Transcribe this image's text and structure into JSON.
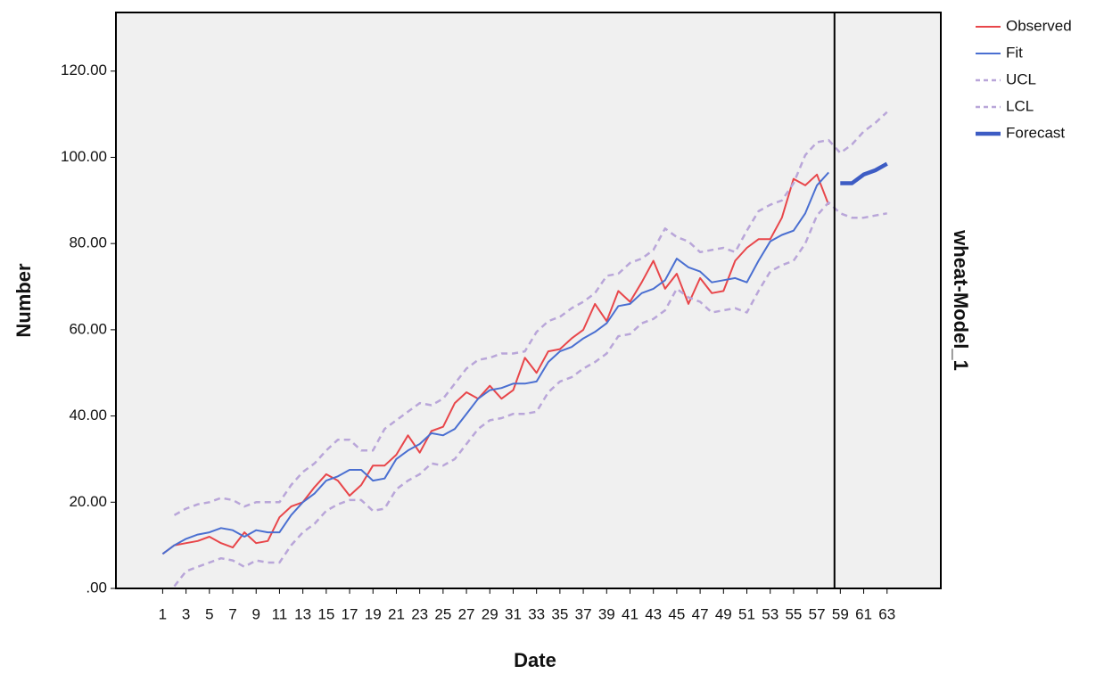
{
  "chart_data": {
    "type": "line",
    "x_label": "Date",
    "y_label": "Number",
    "panel_label": "wheat-Model_1",
    "x": [
      1,
      2,
      3,
      4,
      5,
      6,
      7,
      8,
      9,
      10,
      11,
      12,
      13,
      14,
      15,
      16,
      17,
      18,
      19,
      20,
      21,
      22,
      23,
      24,
      25,
      26,
      27,
      28,
      29,
      30,
      31,
      32,
      33,
      34,
      35,
      36,
      37,
      38,
      39,
      40,
      41,
      42,
      43,
      44,
      45,
      46,
      47,
      48,
      49,
      50,
      51,
      52,
      53,
      54,
      55,
      56,
      57,
      58,
      59,
      60,
      61,
      62,
      63
    ],
    "xlim": [
      -3,
      67.6
    ],
    "xticks": [
      1,
      3,
      5,
      7,
      9,
      11,
      13,
      15,
      17,
      19,
      21,
      23,
      25,
      27,
      29,
      31,
      33,
      35,
      37,
      39,
      41,
      43,
      45,
      47,
      49,
      51,
      53,
      55,
      57,
      59,
      61,
      63
    ],
    "ylim": [
      0,
      133.6
    ],
    "yticks": [
      {
        "value": 0,
        "label": ".00"
      },
      {
        "value": 20,
        "label": "20.00"
      },
      {
        "value": 40,
        "label": "40.00"
      },
      {
        "value": 60,
        "label": "60.00"
      },
      {
        "value": 80,
        "label": "80.00"
      },
      {
        "value": 100,
        "label": "100.00"
      },
      {
        "value": 120,
        "label": "120.00"
      }
    ],
    "series": [
      {
        "name": "Observed",
        "color": "#e8464a",
        "style": "solid",
        "values": [
          8,
          10,
          10.5,
          11,
          12,
          10.5,
          9.5,
          13,
          10.5,
          11,
          16.5,
          19,
          20,
          23.5,
          26.5,
          25,
          21.5,
          24,
          28.5,
          28.5,
          31,
          35.5,
          31.5,
          36.5,
          37.5,
          43,
          45.5,
          44,
          47,
          44,
          46,
          53.5,
          50,
          55,
          55.5,
          58,
          60,
          66,
          62,
          69,
          66.5,
          71,
          76,
          69.5,
          73,
          66,
          72,
          68.5,
          69,
          76,
          79,
          81,
          81,
          86,
          95,
          93.5,
          96,
          89,
          null,
          null,
          null,
          null,
          null
        ]
      },
      {
        "name": "Fit",
        "color": "#4a6fd1",
        "style": "solid",
        "values": [
          8,
          10,
          11.5,
          12.5,
          13,
          14,
          13.5,
          12,
          13.5,
          13,
          13,
          17,
          20,
          22,
          25,
          26,
          27.5,
          27.5,
          25,
          25.5,
          30,
          32,
          33.5,
          36,
          35.5,
          37,
          40.5,
          44,
          46,
          46.5,
          47.5,
          47.5,
          48,
          52.5,
          55,
          56,
          58,
          59.5,
          61.5,
          65.5,
          66,
          68.5,
          69.5,
          71.5,
          76.5,
          74.5,
          73.5,
          71,
          71.5,
          72,
          71,
          76,
          80.5,
          82,
          83,
          87,
          93.5,
          96.5,
          null,
          null,
          null,
          null,
          null
        ]
      },
      {
        "name": "UCL",
        "color": "#b9a6d9",
        "style": "dashed",
        "values": [
          null,
          17,
          18.5,
          19.5,
          20,
          21,
          20.5,
          19,
          20,
          20,
          20,
          24,
          27,
          29,
          32,
          34.5,
          34.5,
          32,
          32,
          37,
          39,
          41,
          43,
          42.5,
          44,
          47.5,
          51,
          53,
          53.5,
          54.5,
          54.5,
          55,
          59.5,
          62,
          63,
          65,
          66.5,
          68.5,
          72.5,
          73,
          75.5,
          76.5,
          78.5,
          83.5,
          81.5,
          80.5,
          78,
          78.5,
          79,
          78,
          83,
          87.5,
          89,
          90,
          94,
          100.5,
          103.5,
          104,
          101,
          103,
          106,
          108,
          110.5
        ]
      },
      {
        "name": "LCL",
        "color": "#b9a6d9",
        "style": "dashed",
        "values": [
          null,
          0.5,
          4,
          5,
          6,
          7,
          6.5,
          5,
          6.5,
          6,
          6,
          10,
          13,
          15,
          18,
          19.5,
          20.5,
          20.5,
          18,
          18.5,
          23,
          25,
          26.5,
          29,
          28.5,
          30,
          33.5,
          37,
          39,
          39.5,
          40.5,
          40.5,
          41,
          45.5,
          48,
          49,
          51,
          52.5,
          54.5,
          58.5,
          59,
          61.5,
          62.5,
          64.5,
          69.5,
          67.5,
          66.5,
          64,
          64.5,
          65,
          64,
          69,
          73.5,
          75,
          76,
          80,
          86.5,
          89.5,
          87,
          86,
          86,
          86.5,
          87
        ]
      },
      {
        "name": "Forecast",
        "color": "#3d5cc4",
        "style": "bold",
        "values": [
          null,
          null,
          null,
          null,
          null,
          null,
          null,
          null,
          null,
          null,
          null,
          null,
          null,
          null,
          null,
          null,
          null,
          null,
          null,
          null,
          null,
          null,
          null,
          null,
          null,
          null,
          null,
          null,
          null,
          null,
          null,
          null,
          null,
          null,
          null,
          null,
          null,
          null,
          null,
          null,
          null,
          null,
          null,
          null,
          null,
          null,
          null,
          null,
          null,
          null,
          null,
          null,
          null,
          null,
          null,
          null,
          null,
          null,
          94,
          94,
          96,
          97,
          98.5
        ]
      }
    ]
  }
}
